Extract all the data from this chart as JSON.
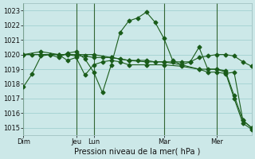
{
  "xlabel": "Pression niveau de la mer( hPa )",
  "bg_color": "#cce8e8",
  "grid_color_major": "#99cccc",
  "grid_color_minor": "#bbdddd",
  "line_color": "#1a5c1a",
  "ylim": [
    1014.5,
    1023.5
  ],
  "yticks": [
    1015,
    1016,
    1017,
    1018,
    1019,
    1020,
    1021,
    1022,
    1023
  ],
  "day_labels": [
    "Dim",
    "Jeu",
    "Lun",
    "Mar",
    "Mer"
  ],
  "day_positions": [
    0,
    6,
    8,
    16,
    22
  ],
  "xlim": [
    0,
    26
  ],
  "vline_color": "#336633",
  "series1_x": [
    0,
    1,
    2,
    3,
    4,
    5,
    6,
    7,
    8,
    9,
    10,
    11,
    12,
    13,
    14,
    15,
    16,
    17,
    18,
    19,
    20,
    21,
    22,
    23,
    24,
    25,
    26
  ],
  "series1_y": [
    1017.8,
    1018.7,
    1019.9,
    1020.0,
    1019.8,
    1020.1,
    1020.2,
    1019.7,
    1018.8,
    1017.4,
    1019.3,
    1021.5,
    1022.3,
    1022.5,
    1022.9,
    1022.2,
    1021.1,
    1019.6,
    1019.3,
    1019.5,
    1020.5,
    1019.0,
    1019.0,
    1018.9,
    1017.2,
    1015.5,
    1015.0
  ],
  "series2_x": [
    0,
    1,
    2,
    3,
    4,
    5,
    6,
    7,
    8,
    9,
    10,
    11,
    12,
    13,
    14,
    15,
    16,
    17,
    18,
    19,
    20,
    21,
    22,
    23,
    24,
    25,
    26
  ],
  "series2_y": [
    1020.0,
    1020.0,
    1020.0,
    1020.0,
    1020.0,
    1020.0,
    1019.9,
    1019.9,
    1019.8,
    1019.8,
    1019.8,
    1019.7,
    1019.6,
    1019.6,
    1019.6,
    1019.5,
    1019.5,
    1019.5,
    1019.5,
    1019.5,
    1019.8,
    1019.9,
    1020.0,
    1020.0,
    1019.9,
    1019.5,
    1019.2
  ],
  "series3_x": [
    0,
    2,
    4,
    6,
    8,
    10,
    12,
    14,
    16,
    18,
    20,
    22,
    23,
    24,
    25,
    26
  ],
  "series3_y": [
    1020.0,
    1020.0,
    1020.0,
    1020.0,
    1020.0,
    1019.8,
    1019.6,
    1019.5,
    1019.5,
    1019.3,
    1019.0,
    1019.0,
    1018.8,
    1017.0,
    1015.3,
    1014.9
  ],
  "series4_x": [
    0,
    2,
    4,
    5,
    6,
    7,
    8,
    9,
    10,
    11,
    12,
    14,
    16,
    18,
    20,
    21,
    22,
    23,
    24,
    25,
    26
  ],
  "series4_y": [
    1020.0,
    1020.2,
    1020.0,
    1019.6,
    1019.8,
    1018.6,
    1019.3,
    1019.5,
    1019.6,
    1019.5,
    1019.3,
    1019.3,
    1019.3,
    1019.2,
    1019.0,
    1018.8,
    1018.8,
    1018.7,
    1018.8,
    1015.5,
    1015.0
  ]
}
